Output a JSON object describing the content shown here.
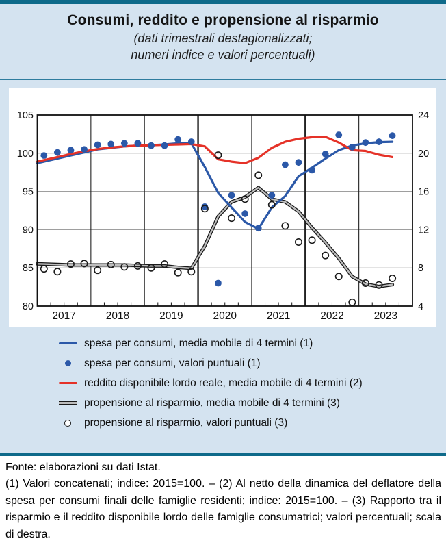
{
  "panel": {
    "title": "Consumi, reddito e propensione al risparmio",
    "subtitle_line1": "(dati trimestrali destagionalizzati;",
    "subtitle_line2": "numeri indice e valori percentuali)"
  },
  "colors": {
    "teal_bar": "#0e6a8a",
    "panel_blue": "#d4e3f0",
    "consumption_blue": "#2b58a8",
    "income_red": "#e53228",
    "savings_gray": "#bcbcbc",
    "line_black": "#1a1a1a",
    "gridline_gray": "#909090"
  },
  "legend": {
    "items": [
      {
        "label": "spesa per consumi, media mobile di 4 termini (1)",
        "marker": "blue-line"
      },
      {
        "label": "spesa per consumi, valori puntuali (1)",
        "marker": "blue-filled-dot"
      },
      {
        "label": "reddito disponibile lordo reale, media mobile di 4 termini (2)",
        "marker": "red-line"
      },
      {
        "label": "propensione al risparmio, media mobile di 4 termini (3)",
        "marker": "gray-double-line"
      },
      {
        "label": "propensione al risparmio, valori puntuali (3)",
        "marker": "open-circle"
      }
    ]
  },
  "footer": {
    "fonte": "Fonte: elaborazioni su dati Istat.",
    "note": "(1) Valori concatenati; indice: 2015=100. – (2) Al netto della dinamica del deflatore della spesa per consumi finali delle famiglie residenti; indice: 2015=100. – (3) Rapporto tra il risparmio e il reddito disponibile lordo delle famiglie consumatrici; valori percentuali; scala di destra.",
    "_": ""
  },
  "chart_data": {
    "type": "line",
    "title": "Consumi, reddito e propensione al risparmio",
    "x_years": [
      2017,
      2018,
      2019,
      2020,
      2021,
      2022,
      2023
    ],
    "thick_year_lines": [
      2020,
      2022
    ],
    "left_axis": {
      "label": "numeri indice (2015=100)",
      "ticks": [
        105,
        100,
        95,
        90,
        85,
        80
      ],
      "range": [
        80,
        105
      ]
    },
    "right_axis": {
      "label": "valori percentuali (scala di destra)",
      "ticks": [
        24,
        20,
        16,
        12,
        8,
        4
      ],
      "range": [
        4,
        24
      ]
    },
    "grid": "horizontal-gray, vertical-black-per-year, quarterly-ticks",
    "legend_position": "below",
    "periods": [
      "2017-Q1",
      "2017-Q2",
      "2017-Q3",
      "2017-Q4",
      "2018-Q1",
      "2018-Q2",
      "2018-Q3",
      "2018-Q4",
      "2019-Q1",
      "2019-Q2",
      "2019-Q3",
      "2019-Q4",
      "2020-Q1",
      "2020-Q2",
      "2020-Q3",
      "2020-Q4",
      "2021-Q1",
      "2021-Q2",
      "2021-Q3",
      "2021-Q4",
      "2022-Q1",
      "2022-Q2",
      "2022-Q3",
      "2022-Q4",
      "2023-Q1",
      "2023-Q2",
      "2023-Q3"
    ],
    "series": [
      {
        "name": "spesa per consumi, media mobile di 4 termini (1)",
        "style": "line",
        "axis": "left",
        "color": "#2b58a8",
        "values": [
          98.9,
          99.3,
          99.7,
          100.1,
          100.5,
          100.7,
          100.9,
          101.0,
          101.05,
          101.15,
          101.3,
          101.3,
          98.2,
          94.8,
          92.9,
          91.0,
          90.1,
          92.9,
          94.4,
          97.0,
          98.1,
          99.3,
          100.4,
          101.0,
          101.3,
          101.45,
          101.5
        ]
      },
      {
        "name": "spesa per consumi, valori puntuali (1)",
        "style": "points-filled",
        "axis": "left",
        "color": "#2b58a8",
        "values": [
          99.7,
          100.1,
          100.4,
          100.5,
          101.1,
          101.2,
          101.3,
          101.3,
          101.0,
          101.0,
          101.8,
          101.5,
          93.0,
          83.0,
          94.5,
          92.1,
          90.2,
          94.5,
          98.5,
          98.8,
          97.8,
          99.9,
          102.4,
          100.8,
          101.4,
          101.5,
          102.3
        ]
      },
      {
        "name": "reddito disponibile lordo reale, media mobile di 4 termini (2)",
        "style": "line",
        "axis": "left",
        "color": "#e53228",
        "values": [
          99.1,
          99.5,
          99.9,
          100.25,
          100.55,
          100.75,
          100.9,
          101.0,
          101.05,
          101.1,
          101.15,
          101.2,
          100.9,
          99.2,
          98.9,
          98.7,
          99.4,
          100.7,
          101.5,
          101.9,
          102.1,
          102.15,
          101.4,
          100.4,
          100.3,
          99.8,
          99.5
        ]
      },
      {
        "name": "propensione al risparmio, media mobile di 4 termini (3)",
        "style": "double-line",
        "axis": "right",
        "color": "#1a1a1a",
        "values": [
          8.4,
          8.35,
          8.3,
          8.3,
          8.3,
          8.3,
          8.3,
          8.25,
          8.2,
          8.2,
          8.05,
          7.95,
          10.3,
          13.4,
          14.9,
          15.4,
          16.4,
          15.2,
          14.9,
          13.9,
          12.2,
          10.65,
          9.0,
          7.1,
          6.3,
          6.05,
          6.25
        ]
      },
      {
        "name": "propensione al risparmio, valori puntuali (3)",
        "style": "points-open",
        "axis": "right",
        "color": "#1a1a1a",
        "values": [
          7.9,
          7.6,
          8.4,
          8.45,
          7.75,
          8.35,
          8.1,
          8.2,
          8.0,
          8.4,
          7.5,
          7.6,
          14.2,
          19.8,
          13.2,
          15.2,
          17.7,
          14.6,
          12.4,
          10.7,
          10.9,
          9.3,
          7.1,
          4.4,
          6.4,
          6.2,
          6.9
        ]
      }
    ]
  }
}
